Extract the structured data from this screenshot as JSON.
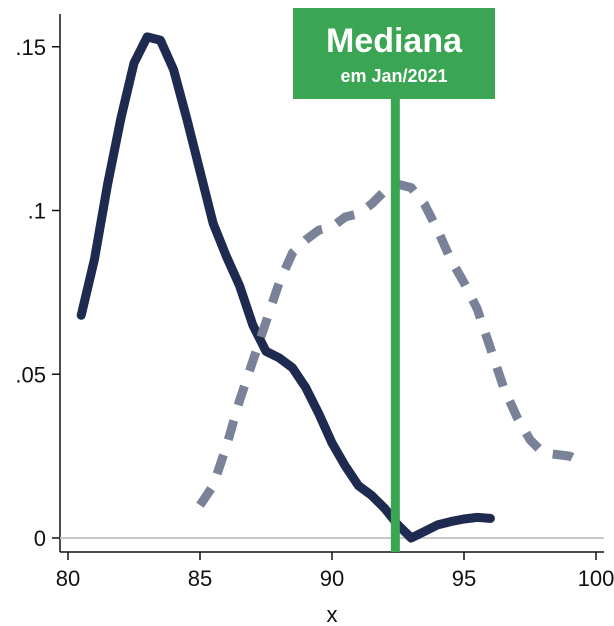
{
  "chart_data": {
    "type": "line",
    "title": "",
    "xlabel": "x",
    "ylabel": "",
    "xlim": [
      80,
      100
    ],
    "ylim": [
      0,
      0.16
    ],
    "x_ticks": [
      80,
      85,
      90,
      95,
      100
    ],
    "x_tick_labels": [
      "80",
      "85",
      "90",
      "95",
      "100"
    ],
    "y_ticks": [
      0,
      0.05,
      0.1,
      0.15
    ],
    "y_tick_labels": [
      "0",
      ".05",
      ".1",
      ".15"
    ],
    "grid": false,
    "legend": "none",
    "series": [
      {
        "style": "solid",
        "color": "#1e2a4f",
        "points": [
          [
            80.5,
            0.068
          ],
          [
            81.0,
            0.085
          ],
          [
            81.5,
            0.108
          ],
          [
            82.0,
            0.128
          ],
          [
            82.5,
            0.145
          ],
          [
            83.0,
            0.153
          ],
          [
            83.5,
            0.152
          ],
          [
            84.0,
            0.143
          ],
          [
            84.5,
            0.128
          ],
          [
            85.0,
            0.112
          ],
          [
            85.5,
            0.096
          ],
          [
            86.0,
            0.086
          ],
          [
            86.5,
            0.077
          ],
          [
            87.0,
            0.065
          ],
          [
            87.5,
            0.057
          ],
          [
            88.0,
            0.055
          ],
          [
            88.5,
            0.052
          ],
          [
            89.0,
            0.046
          ],
          [
            89.5,
            0.038
          ],
          [
            90.0,
            0.029
          ],
          [
            90.5,
            0.022
          ],
          [
            91.0,
            0.016
          ],
          [
            91.5,
            0.013
          ],
          [
            92.0,
            0.009
          ],
          [
            92.5,
            0.004
          ],
          [
            93.0,
            0.0
          ],
          [
            93.5,
            0.002
          ],
          [
            94.0,
            0.004
          ],
          [
            94.5,
            0.005
          ],
          [
            95.0,
            0.0058
          ],
          [
            95.5,
            0.0063
          ],
          [
            96.0,
            0.006
          ]
        ]
      },
      {
        "style": "dashed",
        "color": "#7a8299",
        "points": [
          [
            85.0,
            0.01
          ],
          [
            85.5,
            0.016
          ],
          [
            86.0,
            0.028
          ],
          [
            86.5,
            0.042
          ],
          [
            87.0,
            0.054
          ],
          [
            87.5,
            0.066
          ],
          [
            88.0,
            0.078
          ],
          [
            88.5,
            0.087
          ],
          [
            89.0,
            0.091
          ],
          [
            89.5,
            0.094
          ],
          [
            90.0,
            0.095
          ],
          [
            90.5,
            0.098
          ],
          [
            91.0,
            0.099
          ],
          [
            91.5,
            0.102
          ],
          [
            92.0,
            0.106
          ],
          [
            92.5,
            0.108
          ],
          [
            93.0,
            0.107
          ],
          [
            93.5,
            0.102
          ],
          [
            94.0,
            0.094
          ],
          [
            94.5,
            0.085
          ],
          [
            95.0,
            0.078
          ],
          [
            95.5,
            0.07
          ],
          [
            96.0,
            0.058
          ],
          [
            96.5,
            0.046
          ],
          [
            97.0,
            0.037
          ],
          [
            97.5,
            0.03
          ],
          [
            98.0,
            0.026
          ],
          [
            98.5,
            0.0255
          ],
          [
            99.0,
            0.025
          ],
          [
            99.5,
            0.023
          ]
        ]
      }
    ],
    "vertical_line": {
      "x": 92.4,
      "color": "#3aa553"
    },
    "annotation": {
      "title": "Mediana",
      "subtitle": "em Jan/2021",
      "background": "#3aa553",
      "text_color": "#ffffff"
    },
    "zero_line_color": "#c8c8c8"
  }
}
